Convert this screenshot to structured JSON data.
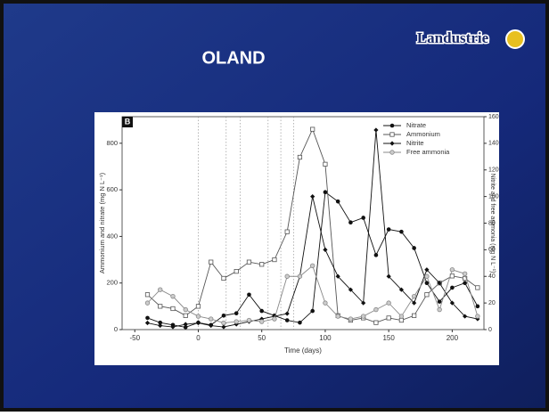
{
  "slide": {
    "title": "OLAND",
    "logo": "Landustrie"
  },
  "chart_data": {
    "type": "line",
    "panel_label": "B",
    "x_label": "Time (days)",
    "y_label": "Ammonium and nitrate (mg N L⁻¹)",
    "y2_label": "Nitrite and free ammonia (mg N L⁻¹)",
    "x": [
      -40,
      -30,
      -20,
      -10,
      0,
      10,
      20,
      30,
      40,
      50,
      60,
      70,
      80,
      90,
      100,
      110,
      120,
      130,
      140,
      150,
      160,
      170,
      180,
      190,
      200,
      210,
      220
    ],
    "xlim": [
      -60,
      225
    ],
    "xticks": [
      -50,
      0,
      50,
      100,
      150,
      200
    ],
    "ylim": [
      0,
      914
    ],
    "yticks": [
      0,
      200,
      400,
      600,
      800
    ],
    "y2lim": [
      0,
      160
    ],
    "y2ticks": [
      0,
      20,
      40,
      60,
      80,
      100,
      120,
      140,
      160
    ],
    "vlines": [
      0,
      22,
      33,
      55,
      65,
      75
    ],
    "legend": "upper right",
    "series": [
      {
        "name": "Nitrate",
        "color": "#111111",
        "marker": "circle-filled",
        "values": [
          50,
          30,
          20,
          10,
          30,
          20,
          60,
          70,
          150,
          80,
          60,
          40,
          30,
          80,
          590,
          550,
          460,
          480,
          320,
          430,
          420,
          350,
          200,
          120,
          180,
          200,
          100
        ]
      },
      {
        "name": "Ammonium",
        "color": "#555555",
        "marker": "square-open",
        "values": [
          150,
          100,
          90,
          60,
          100,
          290,
          220,
          250,
          290,
          280,
          300,
          420,
          740,
          860,
          710,
          60,
          40,
          50,
          30,
          50,
          40,
          60,
          150,
          200,
          230,
          220,
          180
        ]
      },
      {
        "name": "Nitrite",
        "color": "#111111",
        "marker": "diamond-filled",
        "axis": "y2",
        "values": [
          5,
          3,
          2,
          4,
          5,
          3,
          2,
          4,
          6,
          8,
          10,
          12,
          40,
          100,
          60,
          40,
          30,
          20,
          150,
          40,
          30,
          20,
          45,
          35,
          20,
          10,
          8
        ]
      },
      {
        "name": "Free ammonia",
        "color": "#888888",
        "marker": "circle-grey",
        "axis": "y2",
        "values": [
          20,
          30,
          25,
          15,
          10,
          8,
          5,
          6,
          7,
          6,
          8,
          40,
          40,
          48,
          20,
          10,
          8,
          10,
          15,
          20,
          10,
          25,
          40,
          15,
          45,
          42,
          10
        ]
      }
    ]
  }
}
